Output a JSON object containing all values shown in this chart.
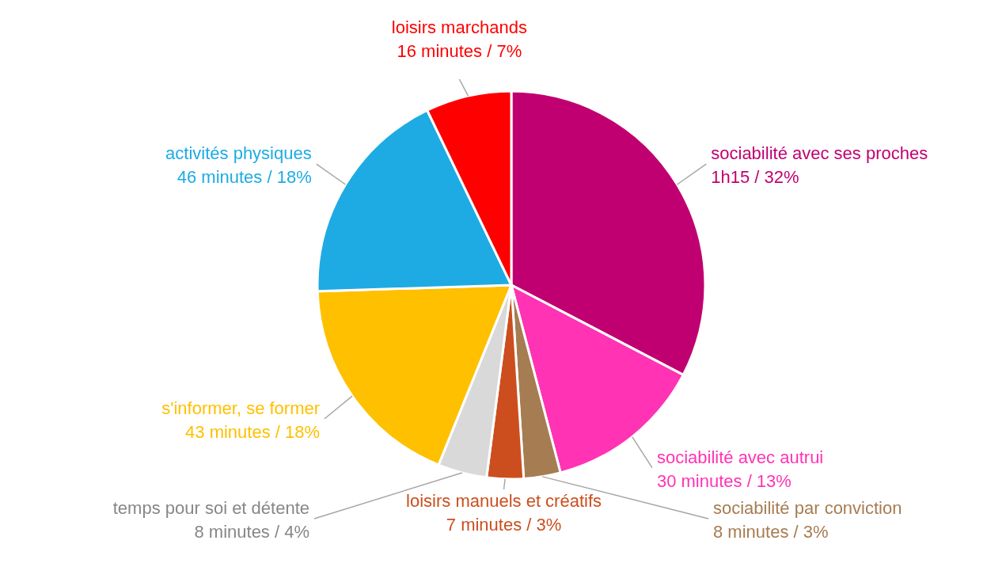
{
  "chart_data": {
    "type": "pie",
    "categories": [
      "sociabilité avec ses proches",
      "sociabilité avec autrui",
      "sociabilité par conviction",
      "loisirs manuels et créatifs",
      "temps pour soi et détente",
      "s'informer, se former",
      "activités physiques",
      "loisirs marchands"
    ],
    "values": [
      32,
      13,
      3,
      3,
      4,
      18,
      18,
      7
    ],
    "value_labels": [
      "1h15 / 32%",
      "30 minutes / 13%",
      "8 minutes / 3%",
      "7 minutes / 3%",
      "8 minutes / 4%",
      "43 minutes / 18%",
      "46 minutes / 18%",
      "16 minutes / 7%"
    ],
    "colors": [
      "#c00070",
      "#ff33b4",
      "#a67c52",
      "#cc4e1e",
      "#d9d9d9",
      "#ffc000",
      "#1eabe3",
      "#ff0000"
    ]
  }
}
